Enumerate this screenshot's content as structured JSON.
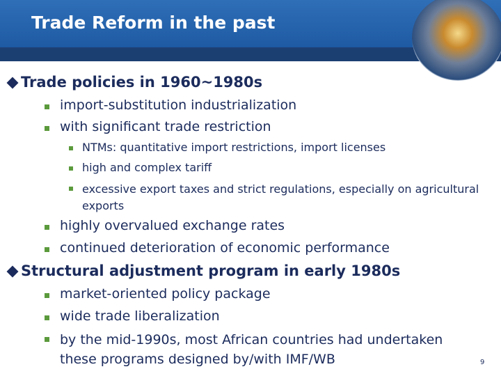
{
  "header": {
    "title": "Trade Reform in the past"
  },
  "sections": [
    {
      "heading": "Trade policies in 1960~1980s",
      "items": [
        {
          "text": "import-substitution industrialization"
        },
        {
          "text": "with significant trade restriction",
          "subitems": [
            "NTMs: quantitative import restrictions, import licenses",
            "high and complex tariff",
            "excessive export taxes and strict regulations, especially on agricultural exports"
          ]
        },
        {
          "text": "highly overvalued exchange rates"
        },
        {
          "text": "continued deterioration of economic performance"
        }
      ]
    },
    {
      "heading": "Structural adjustment program in early 1980s",
      "items": [
        {
          "text": "market-oriented policy package"
        },
        {
          "text": "wide trade liberalization"
        },
        {
          "text": "by the mid-1990s, most African countries had undertaken these programs designed by/with IMF/WB"
        }
      ]
    }
  ],
  "page_number": "9"
}
